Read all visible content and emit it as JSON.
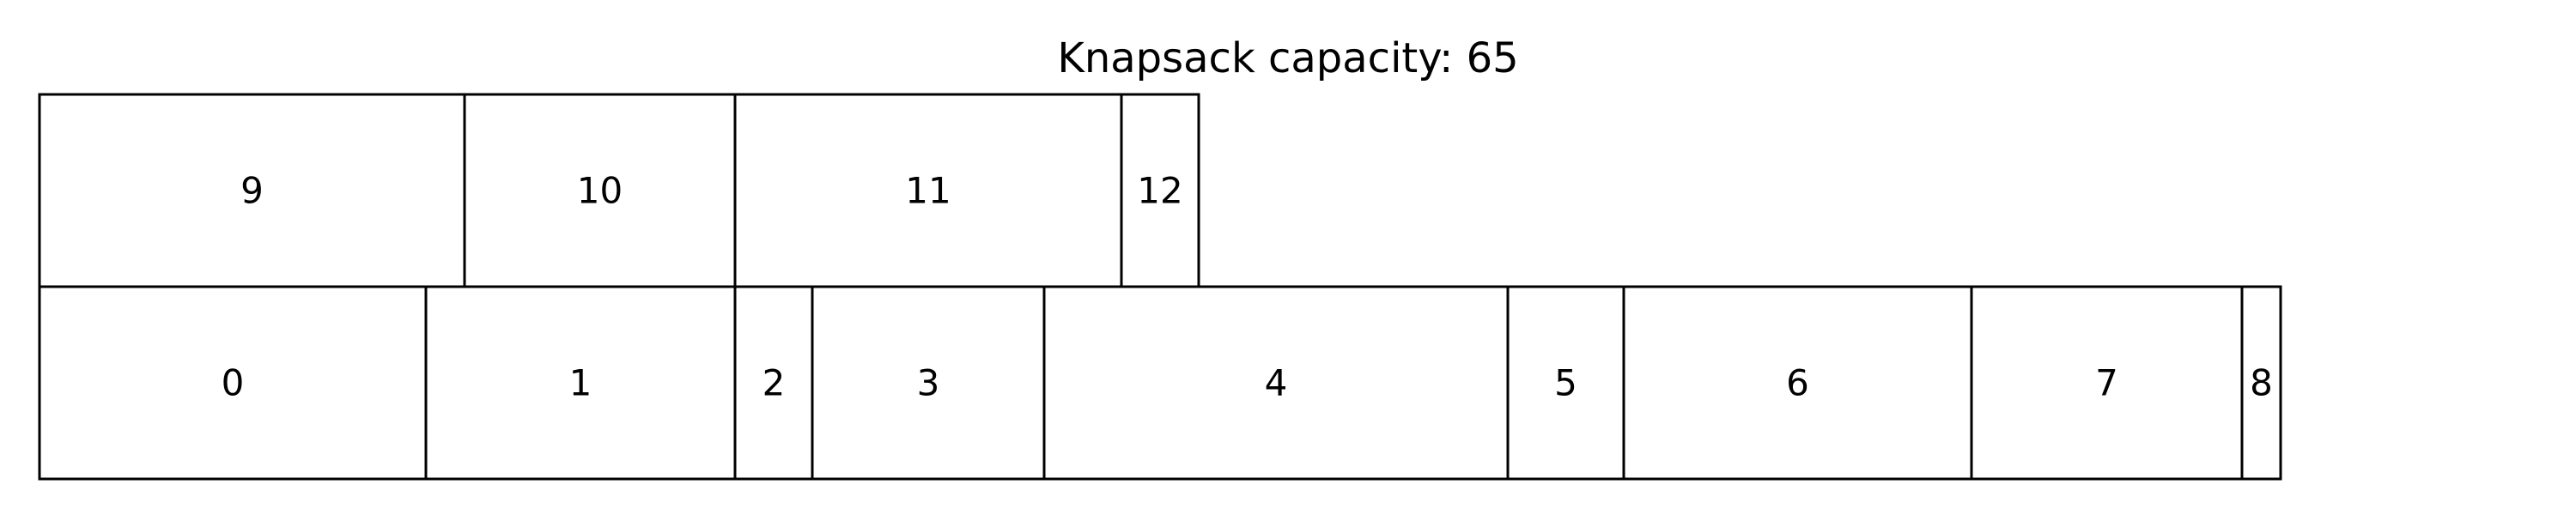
{
  "title": "Knapsack capacity: 65",
  "colors": {
    "background": "#ffffff",
    "stroke": "#000000",
    "text": "#000000"
  },
  "rows": [
    {
      "items": [
        {
          "label": "0",
          "size": 5
        },
        {
          "label": "1",
          "size": 4
        },
        {
          "label": "2",
          "size": 1
        },
        {
          "label": "3",
          "size": 3
        },
        {
          "label": "4",
          "size": 6
        },
        {
          "label": "5",
          "size": 1.5
        },
        {
          "label": "6",
          "size": 4.5
        },
        {
          "label": "7",
          "size": 3.5
        },
        {
          "label": "8",
          "size": 0.5
        }
      ]
    },
    {
      "items": [
        {
          "label": "9",
          "size": 5.5
        },
        {
          "label": "10",
          "size": 3.5
        },
        {
          "label": "11",
          "size": 5
        },
        {
          "label": "12",
          "size": 1
        }
      ]
    }
  ]
}
